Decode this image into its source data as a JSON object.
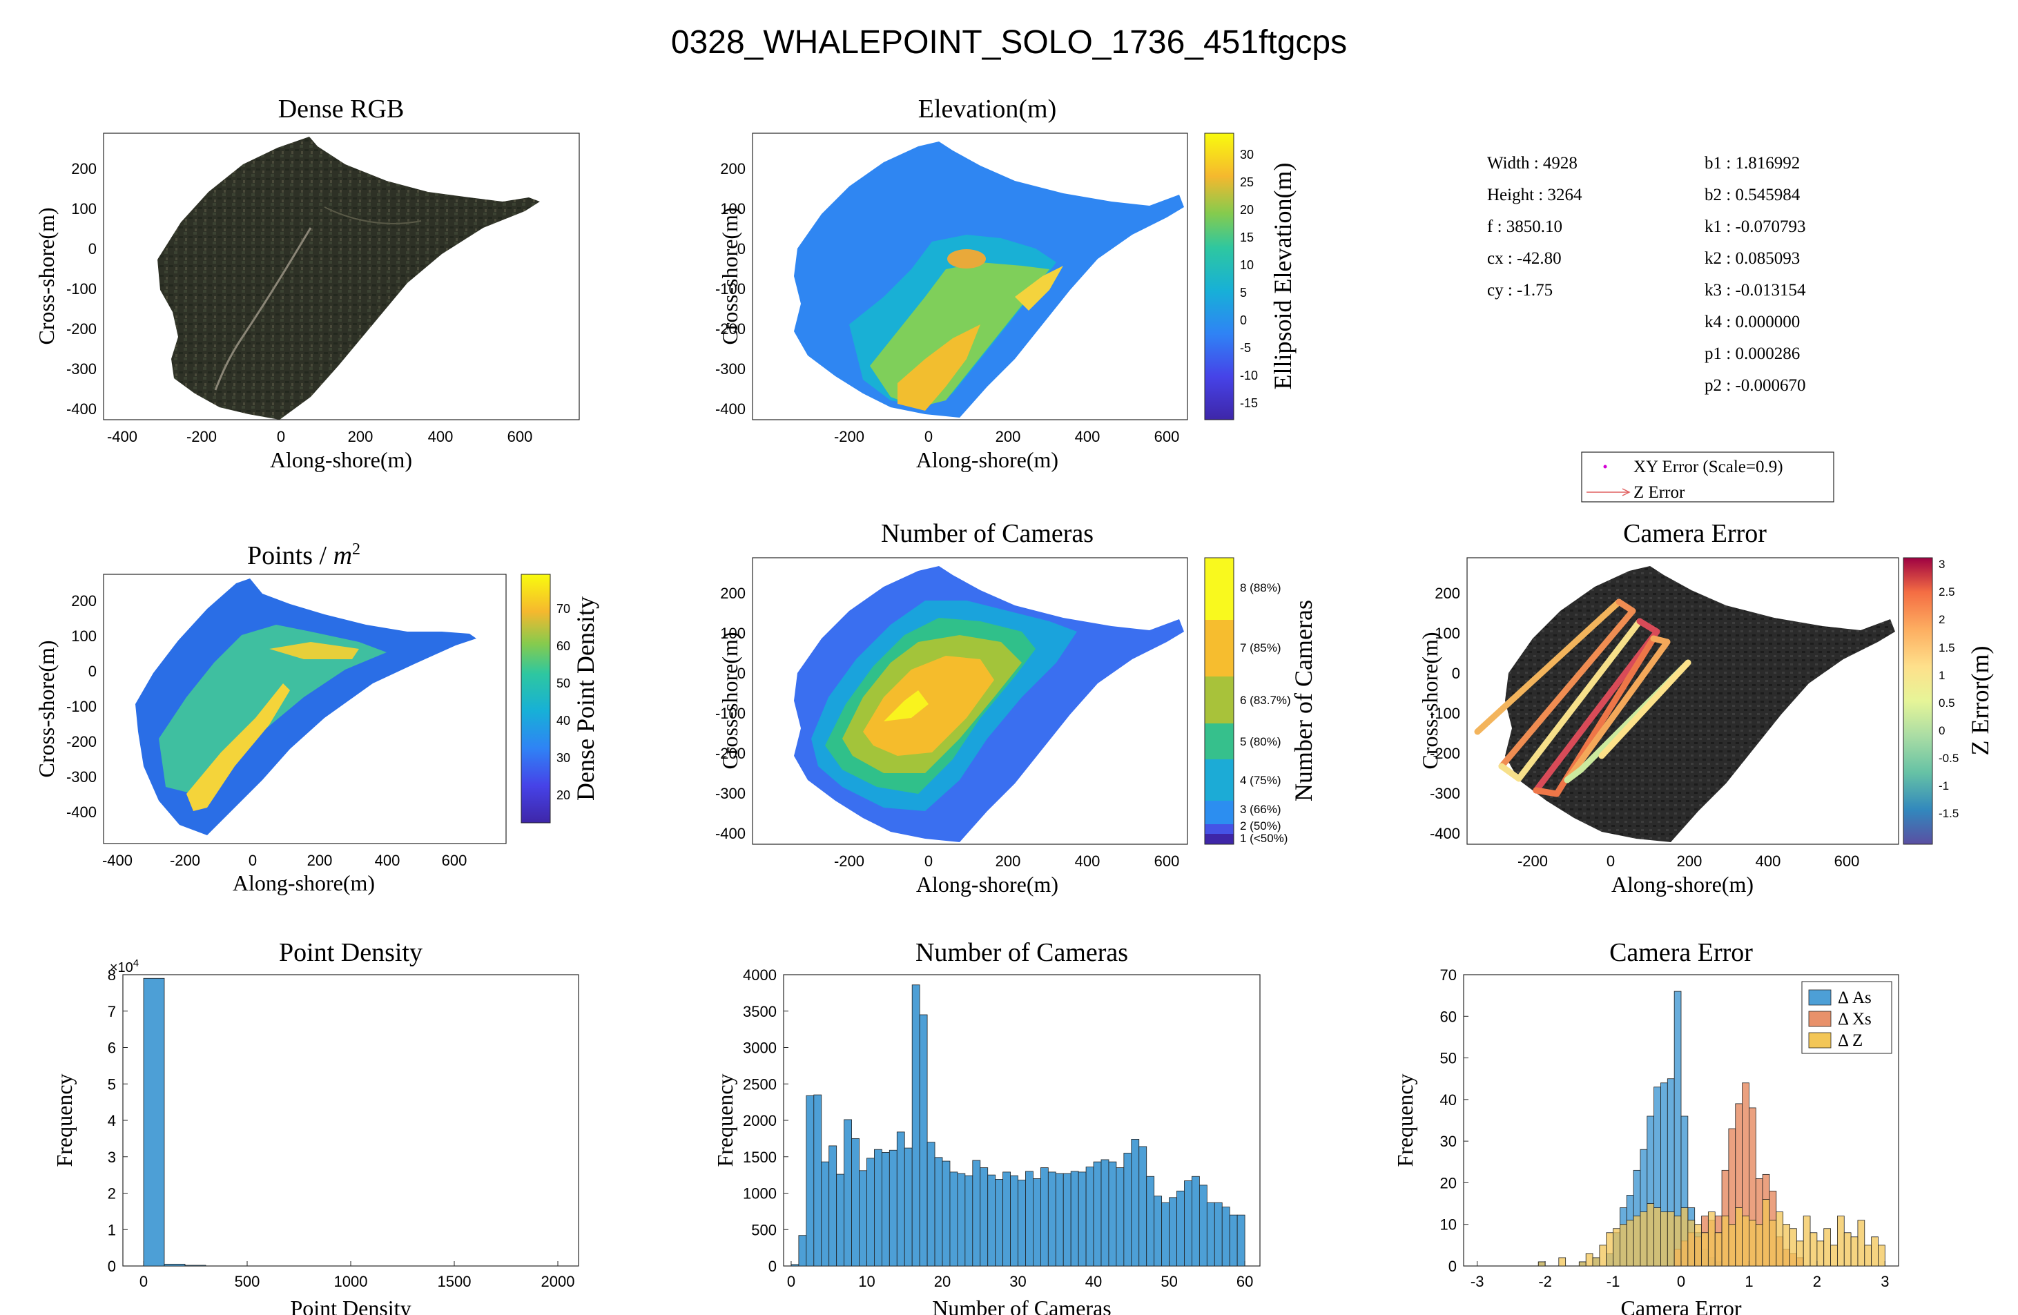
{
  "figure": {
    "title": "0328_WHALEPOINT_SOLO_1736_451ftgcps"
  },
  "panels": {
    "rgb": {
      "title": "Dense RGB",
      "xlabel": "Along-shore(m)",
      "ylabel": "Cross-shore(m)",
      "xticks": [
        "-400",
        "-200",
        "0",
        "200",
        "400",
        "600"
      ],
      "yticks": [
        "200",
        "100",
        "0",
        "-100",
        "-200",
        "-300",
        "-400"
      ]
    },
    "elev": {
      "title": "Elevation(m)",
      "xlabel": "Along-shore(m)",
      "ylabel": "Cross-shore(m)",
      "xticks": [
        "-200",
        "0",
        "200",
        "400",
        "600"
      ],
      "yticks": [
        "200",
        "100",
        "0",
        "-100",
        "-200",
        "-300",
        "-400"
      ],
      "cbar_label": "Ellipsoid Elevation(m)",
      "cbar_ticks": [
        "30",
        "25",
        "20",
        "15",
        "10",
        "5",
        "0",
        "-5",
        "-10",
        "-15"
      ]
    },
    "density_map": {
      "title_text": "Points / ",
      "title_math": "m",
      "title_sup": "2",
      "xlabel": "Along-shore(m)",
      "ylabel": "Cross-shore(m)",
      "xticks": [
        "-400",
        "-200",
        "0",
        "200",
        "400",
        "600"
      ],
      "yticks": [
        "200",
        "100",
        "0",
        "-100",
        "-200",
        "-300",
        "-400"
      ],
      "cbar_label": "Dense Point Density",
      "cbar_ticks": [
        "70",
        "60",
        "50",
        "40",
        "30",
        "20"
      ]
    },
    "ncam_map": {
      "title": "Number of Cameras",
      "xlabel": "Along-shore(m)",
      "ylabel": "Cross-shore(m)",
      "xticks": [
        "-200",
        "0",
        "200",
        "400",
        "600"
      ],
      "yticks": [
        "200",
        "100",
        "0",
        "-100",
        "-200",
        "-300",
        "-400"
      ],
      "cbar_label": "Number of Cameras",
      "cbar_ticks": [
        "8 (88%)",
        "7 (85%)",
        "6 (83.7%)",
        "5 (80%)",
        "4 (75%)",
        "3 (66%)",
        "2 (50%)",
        "1 (<50%)"
      ]
    },
    "camerr_map": {
      "title": "Camera Error",
      "xlabel": "Along-shore(m)",
      "ylabel": "Cross-shore(m)",
      "xticks": [
        "-200",
        "0",
        "200",
        "400",
        "600"
      ],
      "yticks": [
        "200",
        "100",
        "0",
        "-100",
        "-200",
        "-300",
        "-400"
      ],
      "cbar_label": "Z Error(m)",
      "cbar_ticks": [
        "3",
        "2.5",
        "2",
        "1.5",
        "1",
        "0.5",
        "0",
        "-0.5",
        "-1",
        "-1.5"
      ],
      "legend": [
        "XY Error (Scale=0.9)",
        "Z Error"
      ]
    }
  },
  "camera_params": {
    "left": [
      "Width : 4928",
      "Height : 3264",
      "f : 3850.10",
      "cx : -42.80",
      "cy : -1.75"
    ],
    "right": [
      "b1 : 1.816992",
      "b2 : 0.545984",
      "k1 : -0.070793",
      "k2 : 0.085093",
      "k3 : -0.013154",
      "k4 : 0.000000",
      "p1 : 0.000286",
      "p2 : -0.000670"
    ]
  },
  "colors": {
    "hist_blue": "#4d9fd6",
    "xs_orange": "#e8916a",
    "z_yellow": "#f3c657",
    "parula_low": "#3e26a8",
    "parula_high": "#f9fb0e"
  },
  "chart_data": [
    {
      "type": "bar",
      "title": "Point Density",
      "xlabel": "Point Density",
      "ylabel": "Frequency",
      "y_exponent": "×10",
      "y_exponent_sup": "4",
      "xlim": [
        -100,
        2100
      ],
      "ylim": [
        0,
        80000
      ],
      "xticks": [
        "0",
        "500",
        "1000",
        "1500",
        "2000"
      ],
      "yticks": [
        "0",
        "1",
        "2",
        "3",
        "4",
        "5",
        "6",
        "7",
        "8"
      ],
      "bin_width": 100,
      "bin_left": [
        0,
        100,
        200
      ],
      "values": [
        79000,
        500,
        200
      ]
    },
    {
      "type": "bar",
      "title": "Number of Cameras",
      "xlabel": "Number of Cameras",
      "ylabel": "Frequency",
      "xlim": [
        -1,
        62
      ],
      "ylim": [
        0,
        4000
      ],
      "xticks": [
        "0",
        "10",
        "20",
        "30",
        "40",
        "50",
        "60"
      ],
      "yticks": [
        "0",
        "500",
        "1000",
        "1500",
        "2000",
        "2500",
        "3000",
        "3500",
        "4000"
      ],
      "bin_width": 1,
      "bin_left": [
        0,
        1,
        2,
        3,
        4,
        5,
        6,
        7,
        8,
        9,
        10,
        11,
        12,
        13,
        14,
        15,
        16,
        17,
        18,
        19,
        20,
        21,
        22,
        23,
        24,
        25,
        26,
        27,
        28,
        29,
        30,
        31,
        32,
        33,
        34,
        35,
        36,
        37,
        38,
        39,
        40,
        41,
        42,
        43,
        44,
        45,
        46,
        47,
        48,
        49,
        50,
        51,
        52,
        53,
        54,
        55,
        56,
        57,
        58,
        59
      ],
      "values": [
        20,
        420,
        2340,
        2350,
        1430,
        1650,
        1260,
        2010,
        1750,
        1310,
        1480,
        1600,
        1560,
        1590,
        1840,
        1620,
        3860,
        3450,
        1700,
        1490,
        1440,
        1290,
        1270,
        1240,
        1450,
        1350,
        1250,
        1190,
        1290,
        1240,
        1180,
        1300,
        1200,
        1350,
        1290,
        1270,
        1270,
        1300,
        1290,
        1360,
        1430,
        1460,
        1430,
        1350,
        1550,
        1740,
        1640,
        1230,
        960,
        870,
        940,
        1030,
        1170,
        1230,
        1110,
        870,
        870,
        810,
        700,
        700
      ]
    },
    {
      "type": "bar",
      "title": "Camera Error",
      "xlabel": "Camera Error",
      "ylabel": "Frequency",
      "xlim": [
        -3.2,
        3.2
      ],
      "ylim": [
        0,
        70
      ],
      "xticks": [
        "-3",
        "-2",
        "-1",
        "0",
        "1",
        "2",
        "3"
      ],
      "yticks": [
        "0",
        "10",
        "20",
        "30",
        "40",
        "50",
        "60",
        "70"
      ],
      "bin_width": 0.1,
      "legend": [
        "Δ As",
        "Δ Xs",
        "Δ Z"
      ],
      "series": [
        {
          "name": "Δ As",
          "bin_left": [
            -3.0,
            -2.1,
            -1.5,
            -1.3,
            -1.1,
            -1.0,
            -0.9,
            -0.8,
            -0.7,
            -0.6,
            -0.5,
            -0.4,
            -0.3,
            -0.2,
            -0.1,
            0.0,
            0.1,
            0.2,
            0.3,
            0.4,
            0.5
          ],
          "values": [
            0,
            1,
            1,
            2,
            3,
            8,
            14,
            17,
            23,
            28,
            36,
            43,
            44,
            45,
            66,
            36,
            14,
            8,
            4,
            2,
            1
          ]
        },
        {
          "name": "Δ Xs",
          "bin_left": [
            -0.1,
            0.0,
            0.1,
            0.2,
            0.3,
            0.4,
            0.5,
            0.6,
            0.7,
            0.8,
            0.9,
            1.0,
            1.1,
            1.2,
            1.3,
            1.4,
            1.5,
            1.6,
            1.7
          ],
          "values": [
            4,
            6,
            8,
            7,
            12,
            11,
            12,
            23,
            33,
            39,
            44,
            38,
            21,
            22,
            18,
            7,
            4,
            3,
            2
          ]
        },
        {
          "name": "Δ Z",
          "bin_left": [
            -2.1,
            -1.8,
            -1.5,
            -1.4,
            -1.3,
            -1.2,
            -1.1,
            -1.0,
            -0.9,
            -0.8,
            -0.7,
            -0.6,
            -0.5,
            -0.4,
            -0.3,
            -0.2,
            -0.1,
            0.0,
            0.1,
            0.2,
            0.3,
            0.4,
            0.5,
            0.6,
            0.7,
            0.8,
            0.9,
            1.0,
            1.1,
            1.2,
            1.3,
            1.4,
            1.5,
            1.6,
            1.7,
            1.8,
            1.9,
            2.0,
            2.1,
            2.2,
            2.3,
            2.4,
            2.5,
            2.6,
            2.7,
            2.8,
            2.9
          ],
          "values": [
            1,
            2,
            1,
            3,
            2,
            5,
            8,
            9,
            10,
            11,
            12,
            13,
            15,
            14,
            13,
            13,
            12,
            14,
            11,
            10,
            8,
            13,
            8,
            12,
            10,
            14,
            12,
            11,
            10,
            16,
            11,
            13,
            10,
            9,
            6,
            12,
            8,
            6,
            9,
            5,
            12,
            8,
            7,
            11,
            5,
            7,
            5
          ]
        }
      ]
    }
  ]
}
